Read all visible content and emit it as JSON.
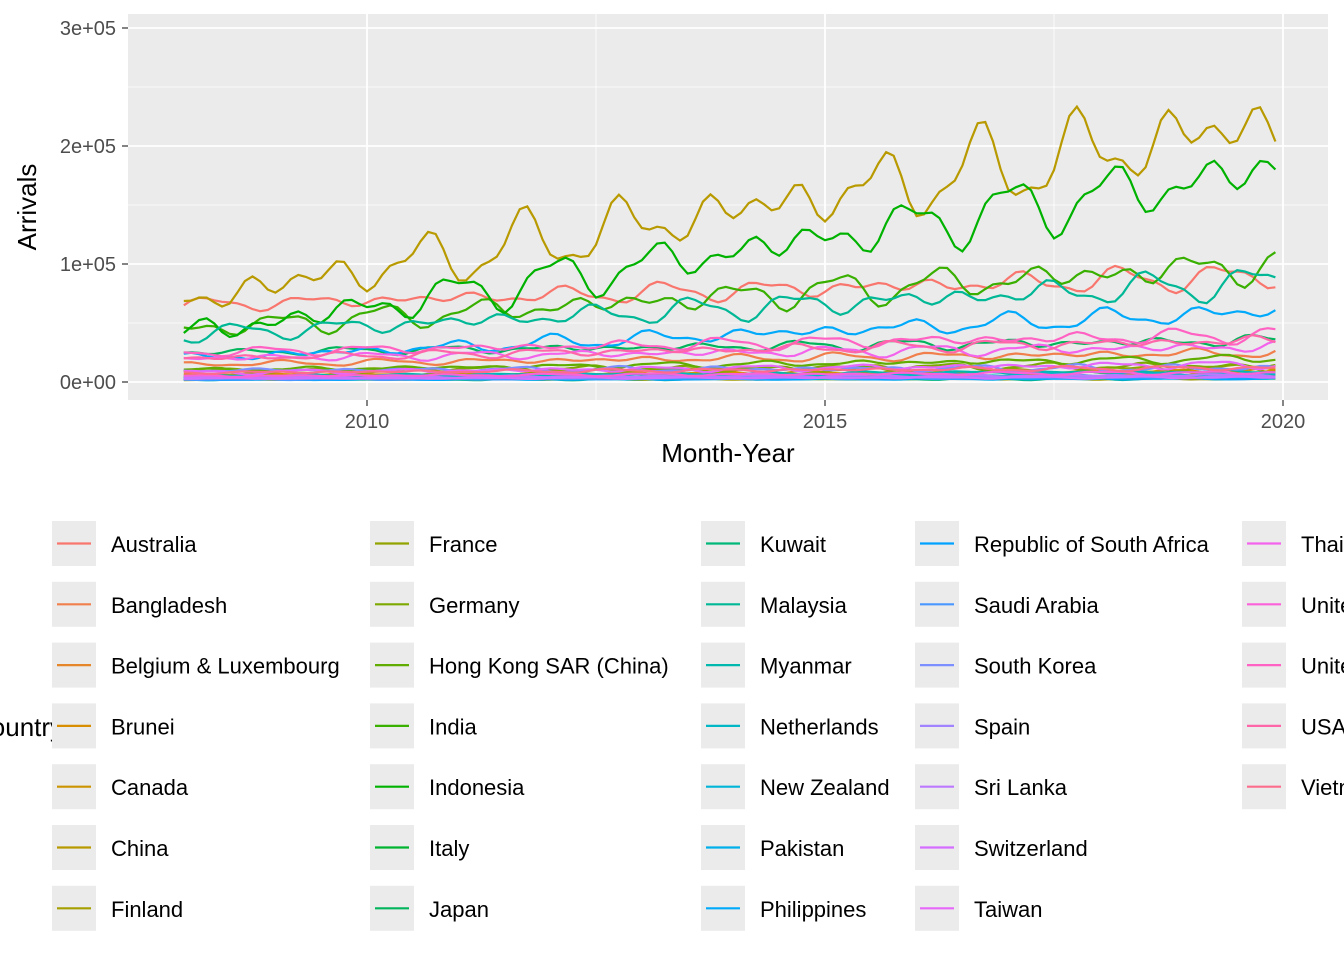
{
  "chart_data": {
    "type": "line",
    "title": "",
    "xlabel": "Month-Year",
    "ylabel": "Arrivals",
    "xlim": [
      2008.0,
      2020.0
    ],
    "ylim": [
      0,
      300000
    ],
    "x_ticks": [
      2010,
      2015,
      2020
    ],
    "y_ticks": [
      0,
      100000,
      200000,
      300000
    ],
    "x_tick_labels": [
      "2010",
      "2015",
      "2020"
    ],
    "y_tick_labels": [
      "0e+00",
      "1e+05",
      "2e+05",
      "3e+05"
    ],
    "grid": true,
    "legend_title": "Country",
    "legend_position": "bottom",
    "series": [
      {
        "name": "Australia",
        "color": "#F8766D",
        "start": 65000,
        "end": 90000,
        "amp": 10000
      },
      {
        "name": "Bangladesh",
        "color": "#F07F4B",
        "start": 15000,
        "end": 25000,
        "amp": 4000
      },
      {
        "name": "Belgium & Luxembourg",
        "color": "#E6862A",
        "start": 3000,
        "end": 4000,
        "amp": 1000
      },
      {
        "name": "Brunei",
        "color": "#D98D00",
        "start": 6000,
        "end": 8000,
        "amp": 2000
      },
      {
        "name": "Canada",
        "color": "#CB9400",
        "start": 6000,
        "end": 9000,
        "amp": 2000
      },
      {
        "name": "China",
        "color": "#B89A00",
        "start": 70000,
        "end": 220000,
        "amp": 35000
      },
      {
        "name": "Finland",
        "color": "#A59F00",
        "start": 2000,
        "end": 3000,
        "amp": 800
      },
      {
        "name": "France",
        "color": "#92A400",
        "start": 9000,
        "end": 12000,
        "amp": 3000
      },
      {
        "name": "Germany",
        "color": "#7CA800",
        "start": 10000,
        "end": 14000,
        "amp": 3000
      },
      {
        "name": "Hong Kong SAR (China)",
        "color": "#61AC00",
        "start": 10000,
        "end": 20000,
        "amp": 3000
      },
      {
        "name": "India",
        "color": "#39AF00",
        "start": 45000,
        "end": 100000,
        "amp": 15000
      },
      {
        "name": "Indonesia",
        "color": "#00B200",
        "start": 40000,
        "end": 180000,
        "amp": 25000
      },
      {
        "name": "Italy",
        "color": "#00B432",
        "start": 3000,
        "end": 5000,
        "amp": 1000
      },
      {
        "name": "Japan",
        "color": "#00B55B",
        "start": 25000,
        "end": 35000,
        "amp": 5000
      },
      {
        "name": "Kuwait",
        "color": "#00B77A",
        "start": 2000,
        "end": 3000,
        "amp": 1000
      },
      {
        "name": "Malaysia",
        "color": "#00B796",
        "start": 40000,
        "end": 85000,
        "amp": 12000
      },
      {
        "name": "Myanmar",
        "color": "#00B8AE",
        "start": 5000,
        "end": 9000,
        "amp": 1500
      },
      {
        "name": "Netherlands",
        "color": "#00B8C5",
        "start": 5000,
        "end": 7000,
        "amp": 1500
      },
      {
        "name": "New Zealand",
        "color": "#00B5D8",
        "start": 3000,
        "end": 5000,
        "amp": 1000
      },
      {
        "name": "Pakistan",
        "color": "#00B0EA",
        "start": 2000,
        "end": 3000,
        "amp": 800
      },
      {
        "name": "Philippines",
        "color": "#00A9FA",
        "start": 20000,
        "end": 60000,
        "amp": 8000
      },
      {
        "name": "Republic of South Africa",
        "color": "#00A2FF",
        "start": 2000,
        "end": 3000,
        "amp": 700
      },
      {
        "name": "Saudi Arabia",
        "color": "#4A98FF",
        "start": 2000,
        "end": 4000,
        "amp": 800
      },
      {
        "name": "South Korea",
        "color": "#7D8EFF",
        "start": 10000,
        "end": 12000,
        "amp": 3000
      },
      {
        "name": "Spain",
        "color": "#A183FF",
        "start": 3000,
        "end": 5000,
        "amp": 1000
      },
      {
        "name": "Sri Lanka",
        "color": "#BC79FF",
        "start": 4000,
        "end": 6000,
        "amp": 1200
      },
      {
        "name": "Switzerland",
        "color": "#D36EFF",
        "start": 3000,
        "end": 4000,
        "amp": 800
      },
      {
        "name": "Taiwan",
        "color": "#E568FA",
        "start": 8000,
        "end": 15000,
        "amp": 3000
      },
      {
        "name": "Thailand",
        "color": "#F363EC",
        "start": 20000,
        "end": 30000,
        "amp": 5000
      },
      {
        "name": "United Arab Emirates",
        "color": "#FB61D9",
        "start": 5000,
        "end": 8000,
        "amp": 1500
      },
      {
        "name": "United Kingdom",
        "color": "#FF62C3",
        "start": 25000,
        "end": 40000,
        "amp": 6000
      },
      {
        "name": "USA",
        "color": "#FF66A9",
        "start": 20000,
        "end": 35000,
        "amp": 5000
      },
      {
        "name": "Vietnam",
        "color": "#FD6C8C",
        "start": 8000,
        "end": 12000,
        "amp": 2000
      }
    ]
  }
}
